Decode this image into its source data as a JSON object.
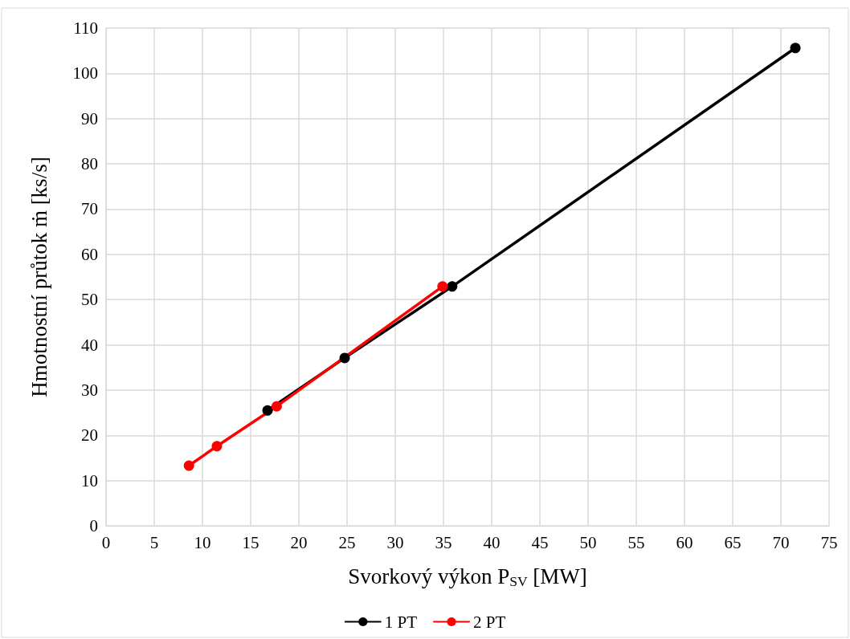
{
  "chart_data": {
    "type": "line",
    "xlabel": "Svorkový výkon P$_{SV}$ [MW]",
    "ylabel": "Hmotnostní průtok ṁ [ks/s]",
    "xlim": [
      0,
      75
    ],
    "xticks": [
      0,
      5,
      10,
      15,
      20,
      25,
      30,
      35,
      40,
      45,
      50,
      55,
      60,
      65,
      70,
      75
    ],
    "ylim": [
      0,
      110
    ],
    "yticks": [
      0,
      10,
      20,
      30,
      40,
      50,
      60,
      70,
      80,
      90,
      100,
      110
    ],
    "grid": true,
    "legend": "bottom",
    "marker": "circle",
    "line_style": "solid",
    "series": [
      {
        "name": "1 PT",
        "color": "#000000",
        "x": [
          16.75,
          24.75,
          35.9,
          71.5
        ],
        "values": [
          25.5,
          37.1,
          52.9,
          105.6
        ]
      },
      {
        "name": "2 PT",
        "color": "#ff0000",
        "x": [
          8.6,
          11.5,
          17.7,
          34.9
        ],
        "values": [
          13.3,
          17.6,
          26.4,
          52.9
        ]
      }
    ]
  }
}
